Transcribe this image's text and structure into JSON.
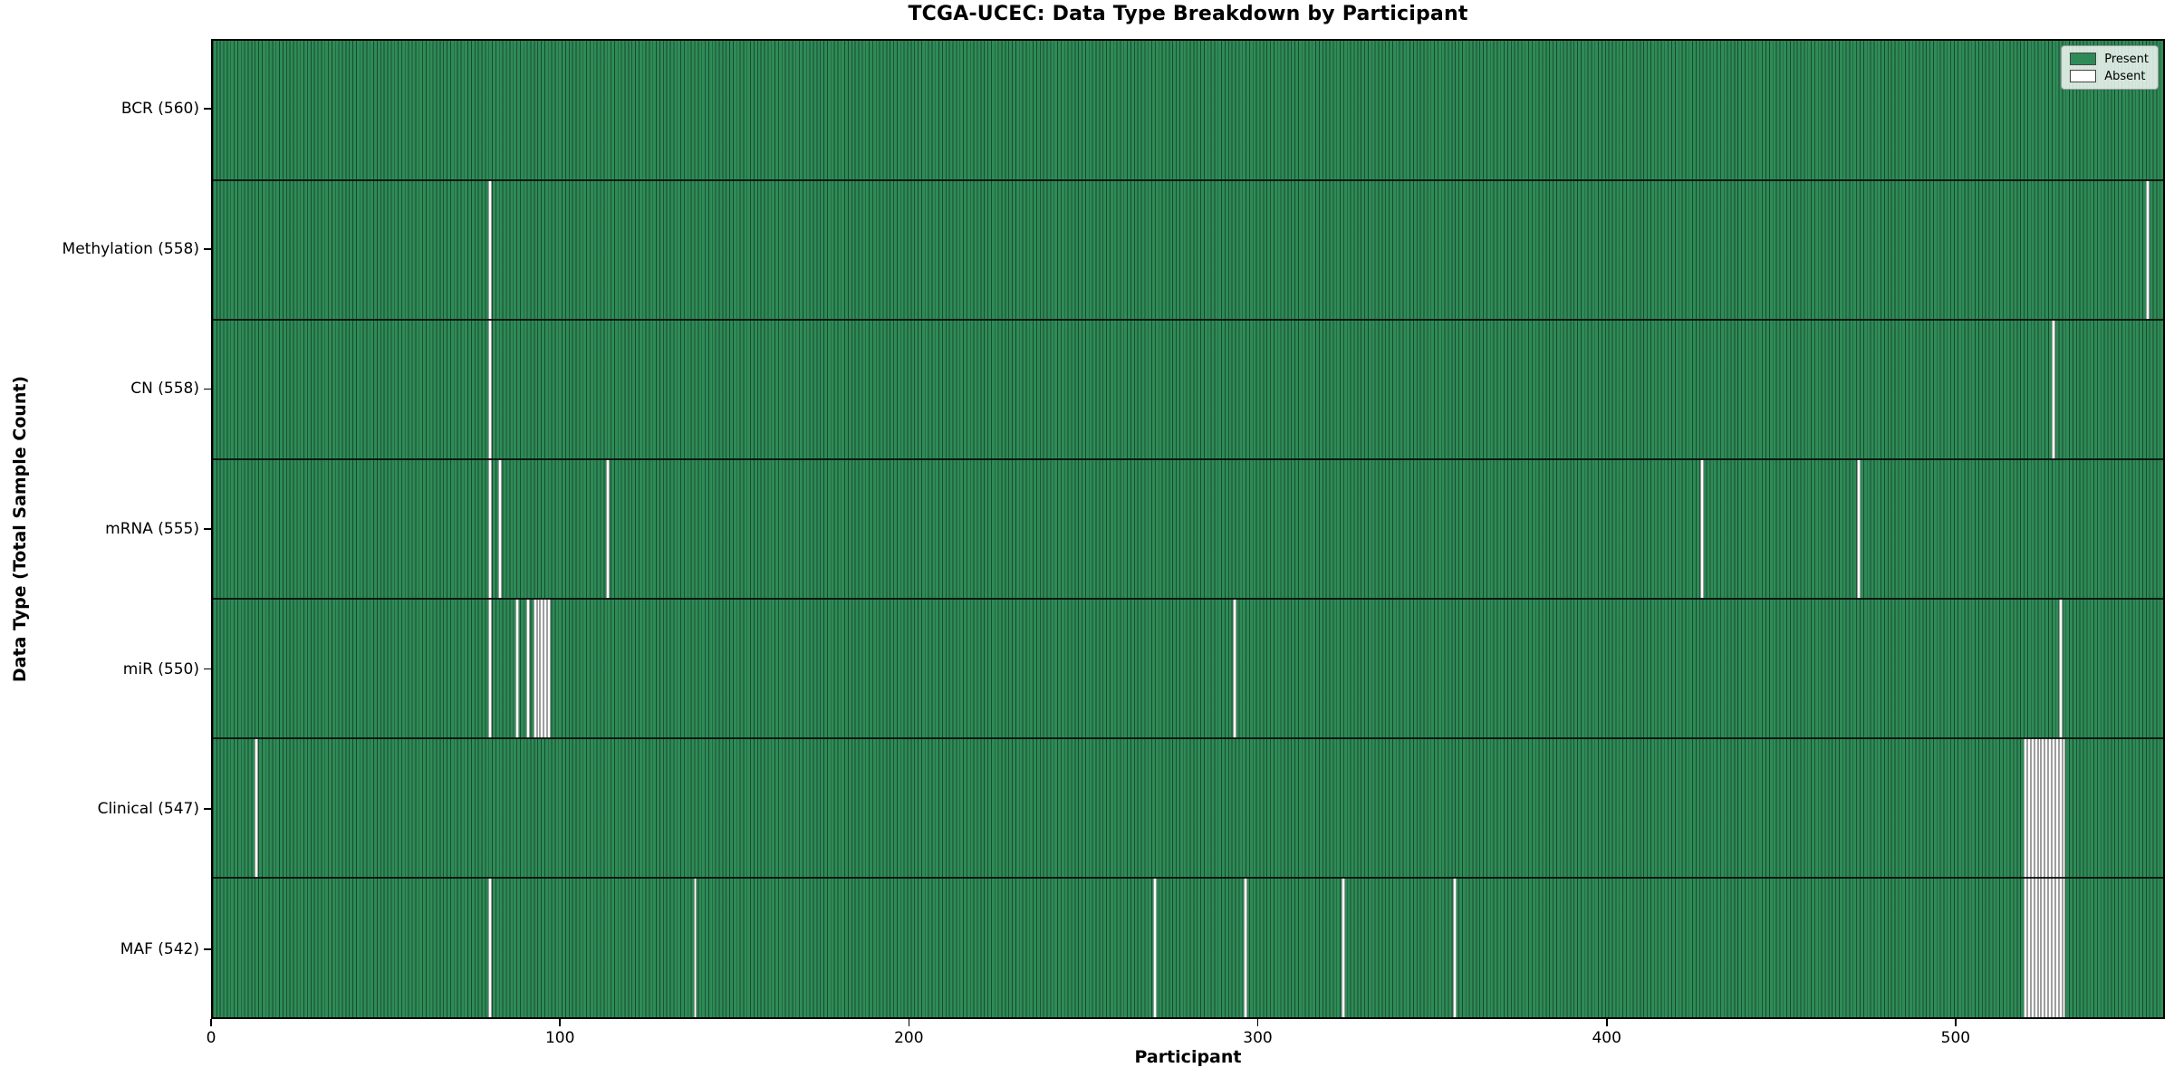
{
  "chart_data": {
    "type": "heatmap",
    "title": "TCGA-UCEC: Data Type Breakdown by Participant",
    "xlabel": "Participant",
    "ylabel": "Data Type (Total Sample Count)",
    "x_ticks": [
      0,
      100,
      200,
      300,
      400,
      500
    ],
    "xlim": [
      0,
      560
    ],
    "n_participants": 560,
    "grid": false,
    "legend_position": "upper right",
    "legend": [
      {
        "label": "Present",
        "color": "#2e8b57"
      },
      {
        "label": "Absent",
        "color": "#ffffff"
      }
    ],
    "colors": {
      "present": "#2e8b57",
      "absent": "#ffffff",
      "bar_edge": "rgba(0,0,0,0.45)",
      "row_divider": "rgba(10,14,12,0.9)",
      "plot_border": "#000000"
    },
    "rows": [
      {
        "name": "BCR",
        "label": "BCR (560)",
        "total": 560,
        "absent": []
      },
      {
        "name": "Methylation",
        "label": "Methylation (558)",
        "total": 558,
        "absent": [
          79,
          555
        ]
      },
      {
        "name": "CN",
        "label": "CN (558)",
        "total": 558,
        "absent": [
          79,
          528
        ]
      },
      {
        "name": "mRNA",
        "label": "mRNA (555)",
        "total": 555,
        "absent": [
          79,
          82,
          113,
          427,
          472
        ]
      },
      {
        "name": "miR",
        "label": "miR (550)",
        "total": 550,
        "absent": [
          79,
          87,
          90,
          92,
          93,
          94,
          95,
          96,
          293,
          530
        ]
      },
      {
        "name": "Clinical",
        "label": "Clinical (547)",
        "total": 547,
        "absent": [
          12,
          520,
          521,
          522,
          523,
          524,
          525,
          526,
          527,
          528,
          529,
          530,
          531
        ]
      },
      {
        "name": "MAF",
        "label": "MAF (542)",
        "total": 542,
        "absent": [
          79,
          138,
          270,
          296,
          324,
          356,
          520,
          521,
          522,
          523,
          524,
          525,
          526,
          527,
          528,
          529,
          530,
          531
        ]
      }
    ]
  }
}
